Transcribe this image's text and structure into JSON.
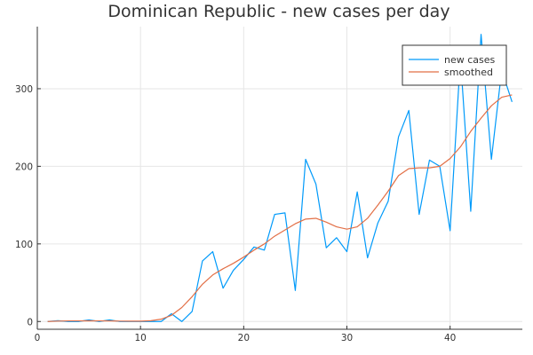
{
  "chart_data": {
    "type": "line",
    "title": "Dominican Republic - new cases per day",
    "xlabel": "",
    "ylabel": "",
    "xlim": [
      0,
      47
    ],
    "ylim": [
      -10,
      380
    ],
    "x_ticks": [
      0,
      10,
      20,
      30,
      40
    ],
    "y_ticks": [
      0,
      100,
      200,
      300
    ],
    "grid": true,
    "legend_position": "top-right",
    "series": [
      {
        "name": "new cases",
        "color": "#009AFA",
        "x": [
          1,
          2,
          3,
          4,
          5,
          6,
          7,
          8,
          9,
          10,
          11,
          12,
          13,
          14,
          15,
          16,
          17,
          18,
          19,
          20,
          21,
          22,
          23,
          24,
          25,
          26,
          27,
          28,
          29,
          30,
          31,
          32,
          33,
          34,
          35,
          36,
          37,
          38,
          39,
          40,
          41,
          42,
          43,
          44,
          45,
          46
        ],
        "y": [
          0,
          1,
          0,
          0,
          2,
          0,
          2,
          0,
          0,
          0,
          0,
          0,
          10,
          0,
          13,
          78,
          90,
          43,
          66,
          80,
          96,
          92,
          138,
          140,
          40,
          209,
          177,
          95,
          108,
          90,
          167,
          82,
          127,
          155,
          238,
          272,
          138,
          208,
          200,
          117,
          340,
          142,
          370,
          209,
          324,
          283
        ]
      },
      {
        "name": "smoothed",
        "color": "#E26F46",
        "x": [
          1,
          2,
          3,
          4,
          5,
          6,
          7,
          8,
          9,
          10,
          11,
          12,
          13,
          14,
          15,
          16,
          17,
          18,
          19,
          20,
          21,
          22,
          23,
          24,
          25,
          26,
          27,
          28,
          29,
          30,
          31,
          32,
          33,
          34,
          35,
          36,
          37,
          38,
          39,
          40,
          41,
          42,
          43,
          44,
          45,
          46
        ],
        "y": [
          0,
          0.5,
          0.8,
          0.8,
          0.9,
          0.8,
          0.8,
          0.5,
          0.4,
          0.4,
          1,
          3,
          8,
          18,
          32,
          48,
          60,
          68,
          75,
          83,
          92,
          100,
          110,
          118,
          126,
          132,
          133,
          128,
          122,
          119,
          122,
          133,
          150,
          168,
          188,
          197,
          198,
          198,
          200,
          210,
          225,
          245,
          262,
          278,
          289,
          292
        ]
      }
    ]
  }
}
